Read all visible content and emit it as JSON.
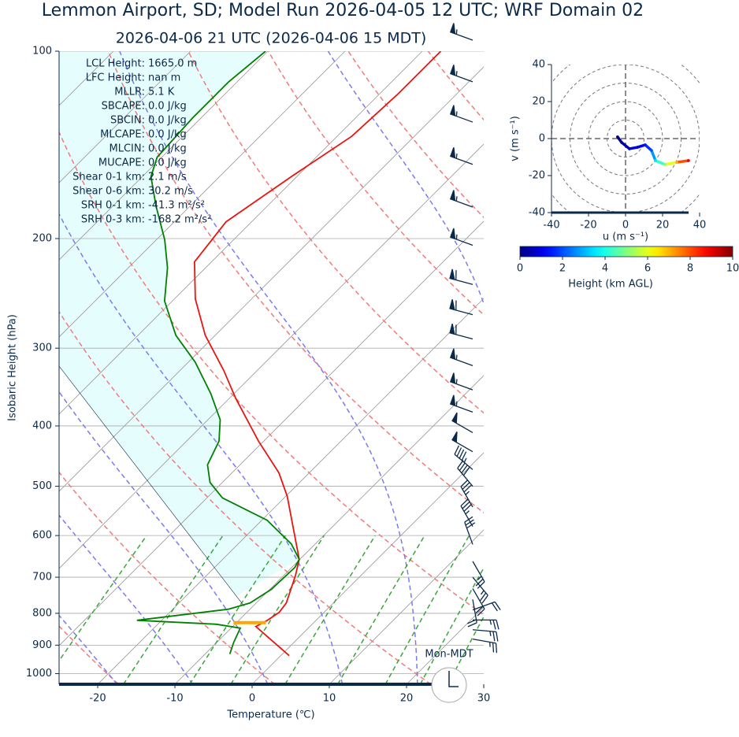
{
  "chart_data": {
    "type": "skewt",
    "title": "Lemmon Airport, SD; Model Run 2026-04-05 12 UTC; WRF Domain 02",
    "subtitle": "2026-04-06 21 UTC  (2026-04-06 15 MDT)",
    "xlabel": "Temperature (℃)",
    "ylabel": "Isobaric Height (hPa)",
    "xlim": [
      -25,
      30
    ],
    "xticks": [
      -20,
      -10,
      0,
      10,
      20,
      30
    ],
    "ylim": [
      1040,
      100
    ],
    "yticks": [
      100,
      200,
      300,
      400,
      500,
      600,
      700,
      800,
      900,
      1000
    ],
    "log_y": true,
    "grid": true,
    "series": [
      {
        "color": "#e8140f",
        "pressure": [
          935.6,
          840,
          821,
          797,
          770,
          695,
          655,
          519,
          476,
          423,
          361,
          326,
          286,
          250,
          218,
          188,
          159,
          137,
          117,
          100
        ],
        "values": [
          1.1,
          -7.0,
          -6.3,
          -5.8,
          -6.1,
          -8.5,
          -10.1,
          -19.8,
          -23.9,
          -30.7,
          -39.2,
          -44.3,
          -51.3,
          -57.3,
          -62.2,
          -63.3,
          -60.7,
          -58.1,
          -57.6,
          -57.6
        ]
      },
      {
        "color": "#008000",
        "pressure": [
          930,
          891,
          845,
          833,
          821,
          788,
          770,
          732,
          675,
          655,
          619,
          567,
          522,
          493,
          462,
          423,
          391,
          355,
          316,
          286,
          252,
          223,
          201,
          177,
          159,
          148,
          128,
          112,
          100
        ],
        "values": [
          -6.8,
          -7.8,
          -8.8,
          -12.4,
          -23.2,
          -12.8,
          -10.8,
          -9.8,
          -9.6,
          -10.1,
          -13.1,
          -19.3,
          -28.0,
          -31.6,
          -34.2,
          -35.8,
          -38.4,
          -43.0,
          -49.1,
          -55.1,
          -61.0,
          -64.9,
          -68.9,
          -74.5,
          -78.9,
          -80.6,
          -81.1,
          -81.1,
          -80.3
        ]
      }
    ],
    "lcl_marker": {
      "pressure": 828,
      "values": [
        -10.4,
        -6.2
      ],
      "color": "#ffa500"
    },
    "annotations": [
      {
        "label": "LCL Height:",
        "value": "1665.0 m"
      },
      {
        "label": "LFC Height:",
        "value": "nan m"
      },
      {
        "label": "MLLR:",
        "value": "5.1 K"
      },
      {
        "label": "SBCAPE:",
        "value": "0.0 J/kg"
      },
      {
        "label": "SBCIN:",
        "value": "0.0 J/kg"
      },
      {
        "label": "MLCAPE:",
        "value": "0.0 J/kg"
      },
      {
        "label": "MLCIN:",
        "value": "0.0 J/kg"
      },
      {
        "label": "MUCAPE:",
        "value": "0.0 J/kg"
      },
      {
        "label": "Shear 0-1 km:",
        "value": "2.1 m/s"
      },
      {
        "label": "Shear 0-6 km:",
        "value": "30.2 m/s"
      },
      {
        "label": "SRH 0-1 km:",
        "value": "-41.3 m²/s²"
      },
      {
        "label": "SRH 0-3 km:",
        "value": "-168.2 m²/s²"
      }
    ],
    "footer_text": "Mon-MDT",
    "barbs": {
      "pressure": [
        96,
        112,
        130,
        152,
        178,
        205,
        237,
        265,
        290,
        320,
        350,
        380,
        410,
        440,
        470,
        500,
        540,
        580,
        620,
        660,
        700,
        730,
        760,
        790,
        820,
        850,
        880
      ],
      "speed": [
        55,
        55,
        55,
        55,
        55,
        55,
        60,
        60,
        60,
        55,
        55,
        55,
        50,
        50,
        45,
        40,
        35,
        35,
        30,
        25,
        25,
        20,
        20,
        20,
        25,
        25,
        25
      ],
      "direction": [
        290,
        290,
        290,
        290,
        290,
        290,
        285,
        285,
        285,
        290,
        290,
        290,
        300,
        300,
        310,
        320,
        330,
        330,
        340,
        150,
        140,
        150,
        170,
        70,
        90,
        95,
        100
      ],
      "color": "#0b2a4a"
    },
    "hodograph": {
      "xlabel": "u (m s⁻¹)",
      "ylabel": "v (m s⁻¹)",
      "xlim": [
        -40,
        40
      ],
      "ylim": [
        -40,
        40
      ],
      "xticks": [
        -40,
        -20,
        0,
        20,
        40
      ],
      "yticks": [
        -40,
        -20,
        0,
        20,
        40
      ],
      "u": [
        -4.3,
        -2.1,
        2.1,
        6.4,
        10.6,
        14.0,
        16.2,
        21.3,
        27.7,
        34.0
      ],
      "v": [
        0.9,
        -2.1,
        -5.5,
        -4.7,
        -3.4,
        -6.4,
        -11.9,
        -14.0,
        -12.8,
        -11.9
      ],
      "heights": [
        0,
        0.3,
        0.7,
        1.0,
        1.5,
        2.0,
        3.5,
        5.0,
        7.0,
        9.0
      ]
    },
    "colorbar": {
      "label": "Height (km AGL)",
      "lim": [
        0,
        10
      ],
      "ticks": [
        0,
        2,
        4,
        6,
        8,
        10
      ],
      "colormap": "jet"
    }
  }
}
